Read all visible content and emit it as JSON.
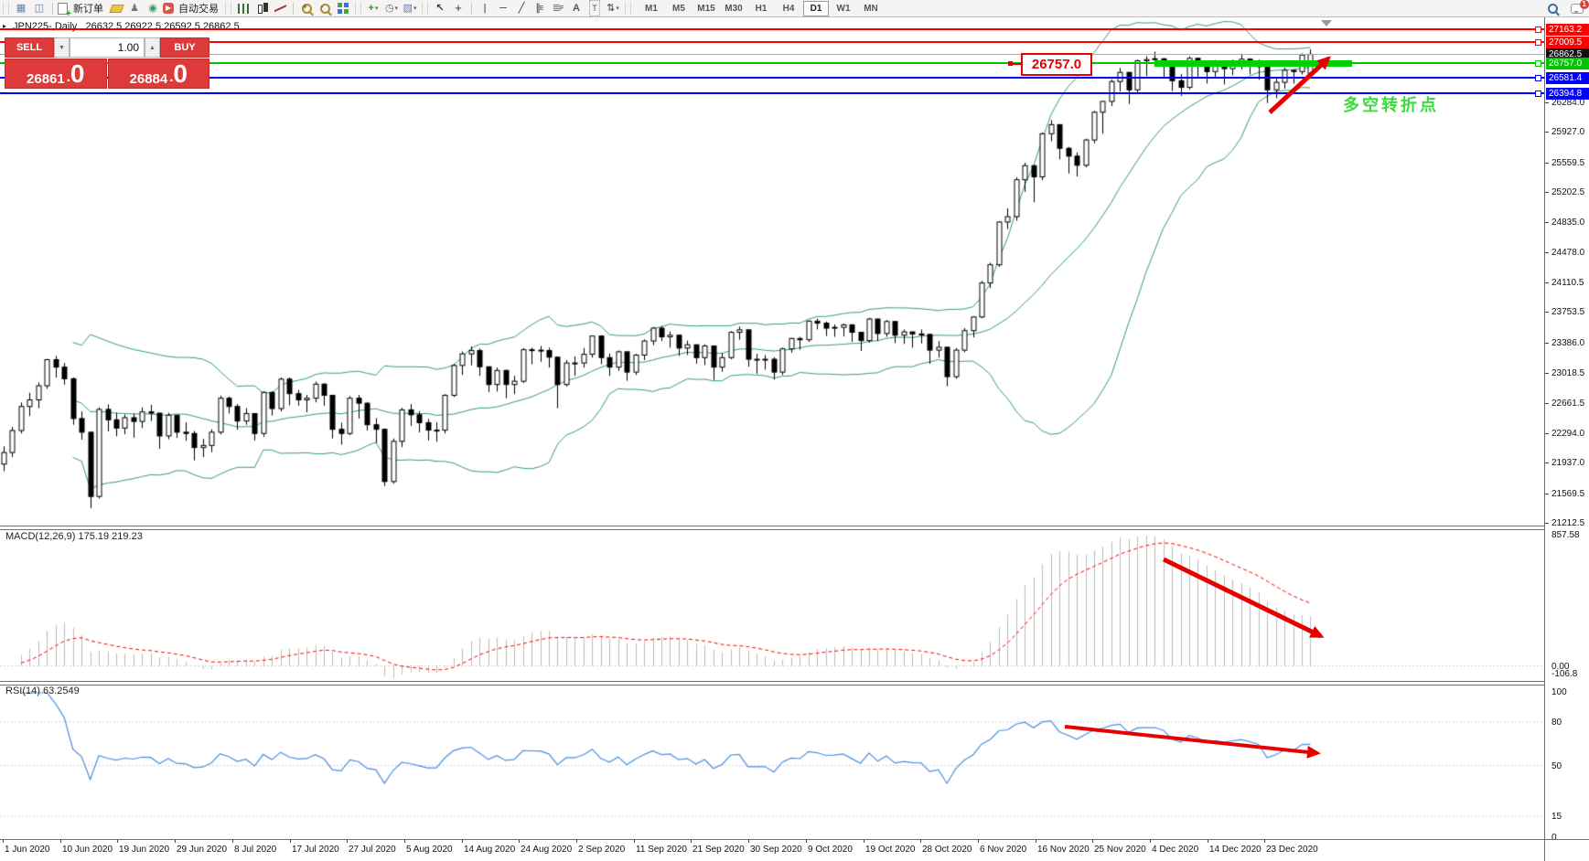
{
  "toolbar": {
    "new_order_label": "新订单",
    "autotrading_label": "自动交易",
    "timeframes": [
      "M1",
      "M5",
      "M15",
      "M30",
      "H1",
      "H4",
      "D1",
      "W1",
      "MN"
    ],
    "active_timeframe": "D1",
    "notification_count": "1",
    "tool_letters": {
      "channel": "E",
      "fibonacci": "F",
      "text": "A",
      "label": "T"
    }
  },
  "chart_header": {
    "title": "JPN225-,Daily",
    "ohlc": "26632.5 26922.5 26592.5 26862.5"
  },
  "trade_panel": {
    "sell_label": "SELL",
    "buy_label": "BUY",
    "volume": "1.00",
    "sell_price": "26861",
    "sell_price_big": "0",
    "buy_price": "26884",
    "buy_price_big": "0"
  },
  "indicators": {
    "macd_label": "MACD(12,26,9) 175.19 219.23",
    "rsi_label": "RSI(14) 63.2549"
  },
  "annotations": {
    "resistance_label": "26757.0",
    "turning_point": "多空转折点",
    "highlight_bar_color": "#00D000",
    "arrow_color": "#E60000"
  },
  "price_scale": {
    "levels": [
      {
        "value": 27163.2,
        "label": "27163.2",
        "color": "#FF0000"
      },
      {
        "value": 27009.5,
        "label": "27009.5",
        "color": "#FF0000"
      },
      {
        "value": 26862.5,
        "label": "26862.5",
        "color": "#ABABAB",
        "badge_bg": "#111111",
        "role": "current-price"
      },
      {
        "value": 26757.0,
        "label": "26757.0",
        "color": "#00C400"
      },
      {
        "value": 26581.4,
        "label": "26581.4",
        "color": "#0000FF"
      },
      {
        "value": 26394.8,
        "label": "26394.8",
        "color": "#0000FF"
      }
    ],
    "ticks": [
      "26284.0",
      "25927.0",
      "25559.5",
      "25202.5",
      "24835.0",
      "24478.0",
      "24110.5",
      "23753.5",
      "23386.0",
      "23018.5",
      "22661.5",
      "22294.0",
      "21937.0",
      "21569.5",
      "21212.5"
    ],
    "macd_scale": [
      "857.58",
      "0.00",
      "-106.8"
    ],
    "rsi_scale": [
      "100",
      "80",
      "50",
      "15",
      "0"
    ]
  },
  "chart_data": {
    "type": "candlestick",
    "symbol": "JPN225",
    "timeframe": "Daily",
    "title": "JPN225-,Daily",
    "last_ohlc": {
      "open": 26632.5,
      "high": 26922.5,
      "low": 26592.5,
      "close": 26862.5
    },
    "price_axis": {
      "top": 27320,
      "bottom": 21168
    },
    "time_labels": [
      "1 Jun 2020",
      "10 Jun 2020",
      "19 Jun 2020",
      "29 Jun 2020",
      "8 Jul 2020",
      "17 Jul 2020",
      "27 Jul 2020",
      "5 Aug 2020",
      "14 Aug 2020",
      "24 Aug 2020",
      "2 Sep 2020",
      "11 Sep 2020",
      "21 Sep 2020",
      "30 Sep 2020",
      "9 Oct 2020",
      "19 Oct 2020",
      "28 Oct 2020",
      "6 Nov 2020",
      "16 Nov 2020",
      "25 Nov 2020",
      "4 Dec 2020",
      "14 Dec 2020",
      "23 Dec 2020"
    ],
    "overlays": {
      "bollinger": {
        "period": 20,
        "deviation": 2,
        "color": "#35A06A"
      }
    },
    "macd": {
      "fast": 12,
      "slow": 26,
      "signal": 9,
      "current": 175.19,
      "current_signal": 219.23,
      "ylim": [
        -106.8,
        857.58
      ],
      "histogram_color": "#BDBDBD",
      "signal_color": "#FF0000"
    },
    "rsi": {
      "period": 14,
      "current": 63.2549,
      "ylim": [
        0,
        100
      ],
      "levels": [
        80,
        50,
        15
      ],
      "color": "#4A8FDE"
    },
    "candles": [
      [
        21920,
        22135,
        21835,
        22060
      ],
      [
        22060,
        22370,
        22005,
        22325
      ],
      [
        22325,
        22665,
        22290,
        22615
      ],
      [
        22615,
        22780,
        22500,
        22695
      ],
      [
        22695,
        22905,
        22595,
        22865
      ],
      [
        22865,
        23190,
        22830,
        23180
      ],
      [
        23180,
        23225,
        22965,
        23090
      ],
      [
        23090,
        23140,
        22880,
        22950
      ],
      [
        22950,
        22965,
        22395,
        22470
      ],
      [
        22470,
        22555,
        22215,
        22305
      ],
      [
        22305,
        22310,
        21390,
        21530
      ],
      [
        21530,
        22605,
        21505,
        22580
      ],
      [
        22580,
        22640,
        22315,
        22455
      ],
      [
        22455,
        22540,
        22255,
        22355
      ],
      [
        22355,
        22520,
        22280,
        22480
      ],
      [
        22480,
        22530,
        22240,
        22435
      ],
      [
        22435,
        22605,
        22355,
        22550
      ],
      [
        22550,
        22635,
        22440,
        22535
      ],
      [
        22535,
        22540,
        22105,
        22260
      ],
      [
        22260,
        22540,
        22220,
        22510
      ],
      [
        22510,
        22515,
        22235,
        22305
      ],
      [
        22305,
        22425,
        22200,
        22290
      ],
      [
        22290,
        22320,
        21965,
        22120
      ],
      [
        22120,
        22225,
        22005,
        22145
      ],
      [
        22145,
        22340,
        22065,
        22305
      ],
      [
        22305,
        22745,
        22280,
        22715
      ],
      [
        22715,
        22735,
        22530,
        22615
      ],
      [
        22615,
        22645,
        22335,
        22440
      ],
      [
        22440,
        22595,
        22395,
        22530
      ],
      [
        22530,
        22535,
        22205,
        22290
      ],
      [
        22290,
        22800,
        22250,
        22785
      ],
      [
        22785,
        22800,
        22505,
        22590
      ],
      [
        22590,
        22965,
        22555,
        22945
      ],
      [
        22945,
        22965,
        22630,
        22770
      ],
      [
        22770,
        22815,
        22625,
        22695
      ],
      [
        22695,
        22755,
        22545,
        22715
      ],
      [
        22715,
        22915,
        22665,
        22885
      ],
      [
        22885,
        22895,
        22625,
        22750
      ],
      [
        22750,
        22755,
        22230,
        22340
      ],
      [
        22340,
        22420,
        22155,
        22290
      ],
      [
        22290,
        22740,
        22270,
        22715
      ],
      [
        22715,
        22755,
        22470,
        22655
      ],
      [
        22655,
        22665,
        22325,
        22395
      ],
      [
        22395,
        22475,
        22175,
        22340
      ],
      [
        22340,
        22350,
        21655,
        21710
      ],
      [
        21710,
        22230,
        21685,
        22195
      ],
      [
        22195,
        22600,
        22125,
        22575
      ],
      [
        22575,
        22645,
        22380,
        22515
      ],
      [
        22515,
        22560,
        22305,
        22420
      ],
      [
        22420,
        22465,
        22205,
        22330
      ],
      [
        22330,
        22425,
        22190,
        22330
      ],
      [
        22330,
        22765,
        22290,
        22750
      ],
      [
        22750,
        23130,
        22730,
        23110
      ],
      [
        23110,
        23280,
        22995,
        23250
      ],
      [
        23250,
        23340,
        23110,
        23290
      ],
      [
        23290,
        23315,
        22985,
        23095
      ],
      [
        23095,
        23100,
        22790,
        22880
      ],
      [
        22880,
        23085,
        22795,
        23050
      ],
      [
        23050,
        23060,
        22715,
        22880
      ],
      [
        22880,
        22985,
        22765,
        22920
      ],
      [
        22920,
        23320,
        22900,
        23300
      ],
      [
        23300,
        23325,
        23125,
        23295
      ],
      [
        23295,
        23345,
        23155,
        23290
      ],
      [
        23290,
        23325,
        23085,
        23210
      ],
      [
        23210,
        23215,
        22595,
        22880
      ],
      [
        22880,
        23175,
        22855,
        23140
      ],
      [
        23140,
        23220,
        22985,
        23140
      ],
      [
        23140,
        23320,
        23085,
        23245
      ],
      [
        23245,
        23470,
        23205,
        23465
      ],
      [
        23465,
        23475,
        23125,
        23205
      ],
      [
        23205,
        23255,
        22985,
        23090
      ],
      [
        23090,
        23290,
        23045,
        23275
      ],
      [
        23275,
        23280,
        22925,
        23030
      ],
      [
        23030,
        23250,
        22995,
        23235
      ],
      [
        23235,
        23425,
        23175,
        23405
      ],
      [
        23405,
        23575,
        23355,
        23560
      ],
      [
        23560,
        23585,
        23405,
        23455
      ],
      [
        23455,
        23520,
        23325,
        23475
      ],
      [
        23475,
        23480,
        23225,
        23320
      ],
      [
        23320,
        23410,
        23235,
        23360
      ],
      [
        23360,
        23365,
        23130,
        23205
      ],
      [
        23205,
        23365,
        23115,
        23345
      ],
      [
        23345,
        23350,
        22935,
        23090
      ],
      [
        23090,
        23260,
        23035,
        23205
      ],
      [
        23205,
        23525,
        23185,
        23510
      ],
      [
        23510,
        23580,
        23420,
        23540
      ],
      [
        23540,
        23545,
        23095,
        23185
      ],
      [
        23185,
        23250,
        23010,
        23185
      ],
      [
        23185,
        23235,
        23060,
        23185
      ],
      [
        23185,
        23210,
        22940,
        23030
      ],
      [
        23030,
        23325,
        22995,
        23310
      ],
      [
        23310,
        23445,
        23265,
        23435
      ],
      [
        23435,
        23455,
        23300,
        23420
      ],
      [
        23420,
        23655,
        23395,
        23645
      ],
      [
        23645,
        23675,
        23545,
        23620
      ],
      [
        23620,
        23640,
        23465,
        23560
      ],
      [
        23560,
        23605,
        23455,
        23570
      ],
      [
        23570,
        23615,
        23460,
        23600
      ],
      [
        23600,
        23610,
        23395,
        23510
      ],
      [
        23510,
        23515,
        23285,
        23410
      ],
      [
        23410,
        23685,
        23385,
        23670
      ],
      [
        23670,
        23675,
        23405,
        23495
      ],
      [
        23495,
        23660,
        23455,
        23640
      ],
      [
        23640,
        23645,
        23380,
        23475
      ],
      [
        23475,
        23545,
        23370,
        23515
      ],
      [
        23515,
        23520,
        23325,
        23490
      ],
      [
        23490,
        23545,
        23375,
        23485
      ],
      [
        23485,
        23490,
        23130,
        23295
      ],
      [
        23295,
        23405,
        23205,
        23330
      ],
      [
        23330,
        23335,
        22860,
        22975
      ],
      [
        22975,
        23320,
        22950,
        23295
      ],
      [
        23295,
        23560,
        23270,
        23530
      ],
      [
        23530,
        23705,
        23450,
        23695
      ],
      [
        23695,
        24130,
        23680,
        24105
      ],
      [
        24105,
        24350,
        24045,
        24325
      ],
      [
        24325,
        24850,
        24300,
        24840
      ],
      [
        24840,
        25005,
        24755,
        24905
      ],
      [
        24905,
        25380,
        24855,
        25350
      ],
      [
        25350,
        25555,
        25205,
        25520
      ],
      [
        25520,
        25530,
        25080,
        25385
      ],
      [
        25385,
        25920,
        25345,
        25905
      ],
      [
        25905,
        26070,
        25815,
        26015
      ],
      [
        26015,
        26020,
        25595,
        25730
      ],
      [
        25730,
        25745,
        25425,
        25635
      ],
      [
        25635,
        25680,
        25390,
        25525
      ],
      [
        25525,
        25845,
        25500,
        25830
      ],
      [
        25830,
        26180,
        25790,
        26165
      ],
      [
        26165,
        26300,
        25905,
        26295
      ],
      [
        26295,
        26560,
        26240,
        26535
      ],
      [
        26535,
        26700,
        26415,
        26645
      ],
      [
        26645,
        26650,
        26265,
        26435
      ],
      [
        26435,
        26800,
        26390,
        26785
      ],
      [
        26785,
        26840,
        26600,
        26800
      ],
      [
        26800,
        26895,
        26715,
        26810
      ],
      [
        26810,
        26815,
        26590,
        26750
      ],
      [
        26750,
        26755,
        26420,
        26545
      ],
      [
        26545,
        26625,
        26360,
        26465
      ],
      [
        26465,
        26840,
        26440,
        26815
      ],
      [
        26815,
        26820,
        26590,
        26755
      ],
      [
        26755,
        26760,
        26510,
        26655
      ],
      [
        26655,
        26795,
        26585,
        26730
      ],
      [
        26730,
        26735,
        26500,
        26690
      ],
      [
        26690,
        26800,
        26610,
        26755
      ],
      [
        26755,
        26870,
        26680,
        26805
      ],
      [
        26805,
        26815,
        26620,
        26765
      ],
      [
        26765,
        26800,
        26555,
        26715
      ],
      [
        26715,
        26720,
        26275,
        26435
      ],
      [
        26435,
        26580,
        26335,
        26525
      ],
      [
        26525,
        26705,
        26450,
        26670
      ],
      [
        26670,
        26680,
        26510,
        26655
      ],
      [
        26655,
        26875,
        26620,
        26855
      ],
      [
        26632.5,
        26922.5,
        26592.5,
        26862.5
      ]
    ]
  }
}
